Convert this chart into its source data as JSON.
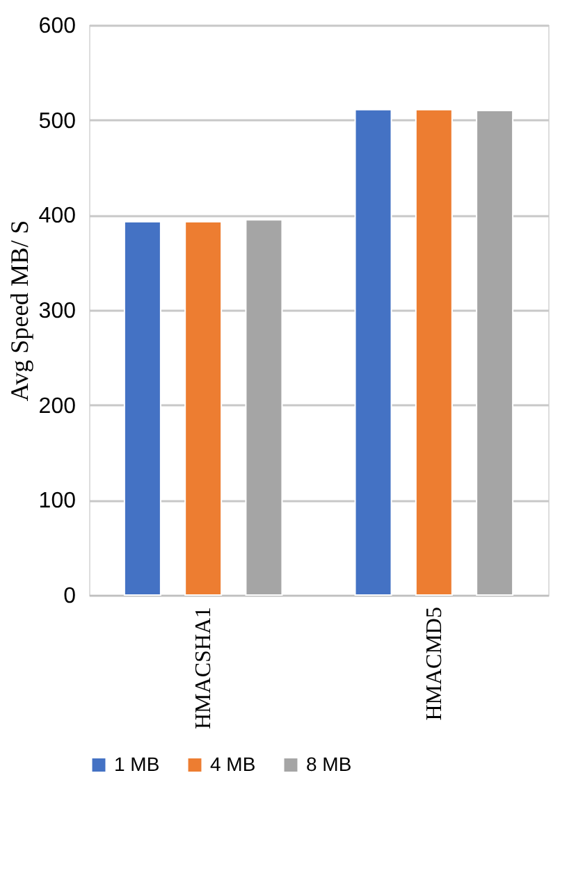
{
  "chart_data": {
    "type": "bar",
    "ylabel": "Avg Speed MB/ S",
    "categories": [
      "HMACSHA1",
      "HMACMD5"
    ],
    "series": [
      {
        "name": "1 MB",
        "color": "#4472c4",
        "values": [
          393,
          511
        ]
      },
      {
        "name": "4 MB",
        "color": "#ed7d31",
        "values": [
          393,
          511
        ]
      },
      {
        "name": "8 MB",
        "color": "#a5a5a5",
        "values": [
          395,
          510
        ]
      }
    ],
    "ylim": [
      0,
      600
    ],
    "yticks": [
      0,
      100,
      200,
      300,
      400,
      500,
      600
    ],
    "grid": "y",
    "legend": "bottom"
  }
}
